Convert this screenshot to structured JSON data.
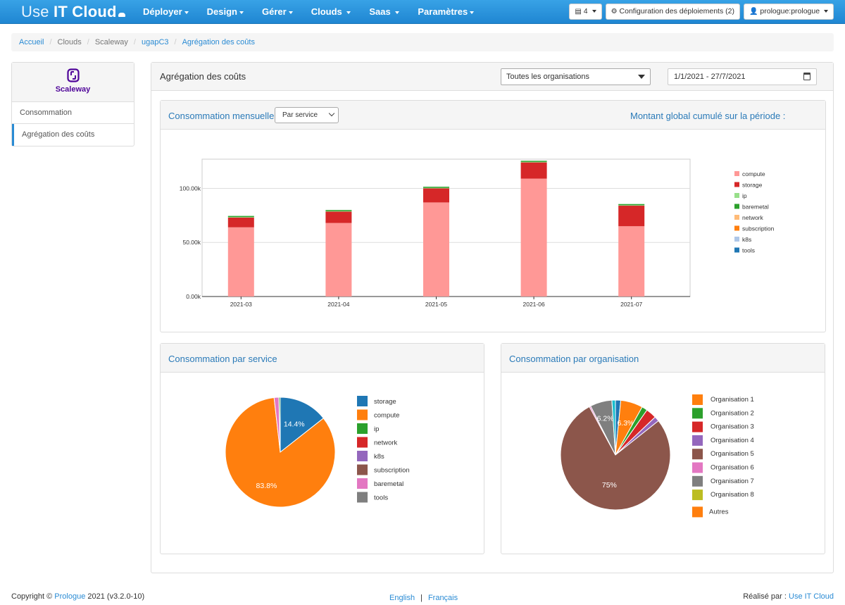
{
  "navbar": {
    "brand_prefix": "Use ",
    "brand_bold": "IT Cloud",
    "menu": [
      "Déployer",
      "Design",
      "Gérer",
      "Clouds",
      "Saas",
      "Paramètres"
    ],
    "servers_count": "4",
    "deploy_config": "Configuration des déploiements (2)",
    "user": "prologue:prologue"
  },
  "breadcrumb": {
    "home": "Accueil",
    "clouds": "Clouds",
    "provider": "Scaleway",
    "project": "ugapC3",
    "current": "Agrégation des coûts"
  },
  "sidebar": {
    "logo_text": "Scaleway",
    "items": [
      "Consommation",
      "Agrégation des coûts"
    ]
  },
  "main": {
    "title": "Agrégation des coûts",
    "org_filter": "Toutes les organisations",
    "date_range": "1/1/2021 - 27/7/2021"
  },
  "monthly": {
    "title": "Consommation mensuelle",
    "group_by": "Par service",
    "total_label": "Montant global cumulé sur la période :"
  },
  "service_panel": {
    "title": "Consommation par service"
  },
  "org_panel": {
    "title": "Consommation par organisation"
  },
  "chart_data": [
    {
      "type": "bar",
      "stacked": true,
      "title": "Consommation mensuelle",
      "categories": [
        "2021-03",
        "2021-04",
        "2021-05",
        "2021-06",
        "2021-07"
      ],
      "yticks": [
        "0.00k",
        "50.00k",
        "100.00k"
      ],
      "ylim": [
        0,
        127000
      ],
      "grid": true,
      "legend_position": "right",
      "series": [
        {
          "name": "compute",
          "color": "#ff9896",
          "values": [
            64000,
            68000,
            87000,
            109000,
            65000
          ]
        },
        {
          "name": "storage",
          "color": "#d62728",
          "values": [
            9000,
            10500,
            13000,
            15000,
            19000
          ]
        },
        {
          "name": "ip",
          "color": "#98df8a",
          "values": [
            500,
            500,
            500,
            500,
            500
          ]
        },
        {
          "name": "baremetal",
          "color": "#2ca02c",
          "values": [
            1000,
            1000,
            1000,
            1000,
            1000
          ]
        },
        {
          "name": "network",
          "color": "#ffbb78",
          "values": [
            0,
            0,
            0,
            0,
            0
          ]
        },
        {
          "name": "subscription",
          "color": "#ff7f0e",
          "values": [
            0,
            0,
            0,
            0,
            0
          ]
        },
        {
          "name": "k8s",
          "color": "#aec7e8",
          "values": [
            0,
            0,
            0,
            0,
            0
          ]
        },
        {
          "name": "tools",
          "color": "#1f77b4",
          "values": [
            0,
            0,
            0,
            0,
            0
          ]
        }
      ]
    },
    {
      "type": "pie",
      "title": "Consommation par service",
      "labels": [
        "storage",
        "compute",
        "ip",
        "network",
        "k8s",
        "subscription",
        "baremetal",
        "tools"
      ],
      "values": [
        14.4,
        83.8,
        0.4,
        0.0,
        0.0,
        0.0,
        1.4,
        0.0
      ],
      "value_labels": [
        "14.4%",
        "83.8%",
        "",
        "",
        "",
        "",
        "",
        ""
      ],
      "colors": [
        "#1f77b4",
        "#ff7f0e",
        "#2ca02c",
        "#d62728",
        "#9467bd",
        "#8c564b",
        "#e377c2",
        "#7f7f7f"
      ],
      "legend_position": "right"
    },
    {
      "type": "pie",
      "title": "Consommation par organisation",
      "labels": [
        "Organisation 1",
        "Organisation 2",
        "Organisation 3",
        "Organisation 4",
        "Organisation 5",
        "Organisation 6",
        "Organisation 7",
        "Organisation 8",
        "Autres"
      ],
      "values": [
        6.3,
        1.6,
        3.0,
        1.4,
        75.0,
        0.4,
        6.2,
        0.0,
        0.0
      ],
      "value_labels": [
        "6.3%",
        "",
        "",
        "",
        "75%",
        "",
        "6.2%",
        "",
        ""
      ],
      "colors": [
        "#ff7f0e",
        "#2ca02c",
        "#d62728",
        "#9467bd",
        "#8c564b",
        "#e377c2",
        "#7f7f7f",
        "#bcbd22",
        "#ff7f0e"
      ],
      "extra_slices": [
        {
          "color": "#17becf",
          "value": 1.0
        },
        {
          "color": "#1f77b4",
          "value": 1.5
        }
      ],
      "legend_position": "right"
    }
  ],
  "footer": {
    "copyright_prefix": "Copyright © ",
    "company": "Prologue",
    "copyright_suffix": " 2021 (v3.2.0-10)",
    "lang_en": "English",
    "lang_fr": "Français",
    "made_by": "Réalisé par : ",
    "made_by_link": "Use IT Cloud"
  }
}
